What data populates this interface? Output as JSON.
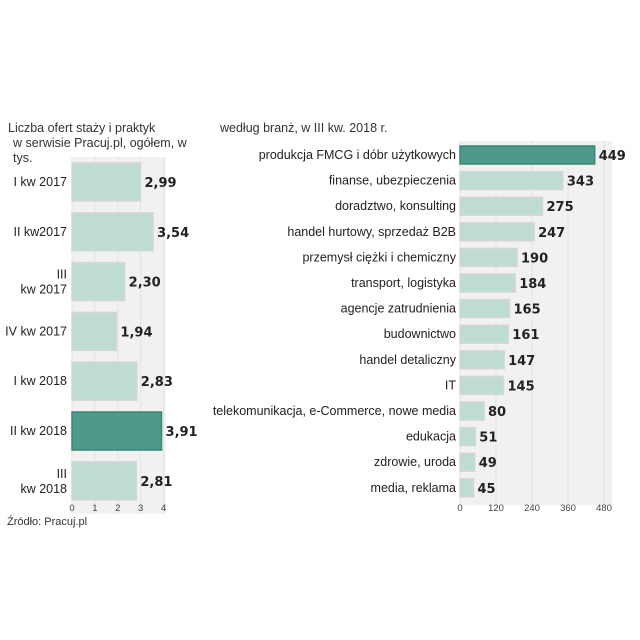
{
  "left_heading_line1": "Liczba ofert staży i praktyk",
  "left_heading_line2": "w serwisie Pracuj.pl, ogółem, w tys.",
  "right_heading": "według branż, w III kw. 2018 r.",
  "source": "Źródło: Pracuj.pl",
  "colors": {
    "bar": "#bfdcd3",
    "bar_stroke": "#d6d6d6",
    "highlight": "#4e9a8a",
    "panel": "#f1f1f1",
    "grid": "#e3e3e3"
  },
  "chart_data": [
    {
      "type": "bar",
      "orientation": "horizontal",
      "categories": [
        [
          "I kw 2017"
        ],
        [
          "II kw2017"
        ],
        [
          "III",
          "kw 2017"
        ],
        [
          "IV kw 2017"
        ],
        [
          "I kw 2018"
        ],
        [
          "II kw 2018"
        ],
        [
          "III",
          "kw  2018"
        ]
      ],
      "values": [
        2.99,
        3.54,
        2.3,
        1.94,
        2.83,
        3.91,
        2.81
      ],
      "value_labels": [
        "2,99",
        "3,54",
        "2,30",
        "1,94",
        "2,83",
        "3,91",
        "2,81"
      ],
      "highlight_index": 5,
      "xlim": [
        0,
        4
      ],
      "xticks": [
        0,
        1,
        2,
        3,
        4
      ],
      "grid": true
    },
    {
      "type": "bar",
      "orientation": "horizontal",
      "categories": [
        "produkcja FMCG i dóbr użytkowych",
        "finanse, ubezpieczenia",
        "doradztwo, konsulting",
        "handel hurtowy, sprzedaż B2B",
        "przemysł ciężki i chemiczny",
        "transport, logistyka",
        "agencje zatrudnienia",
        "budownictwo",
        "handel detaliczny",
        "IT",
        "telekomunikacja, e-Commerce, nowe media",
        "edukacja",
        "zdrowie, uroda",
        "media, reklama"
      ],
      "values": [
        449,
        343,
        275,
        247,
        190,
        184,
        165,
        161,
        147,
        145,
        80,
        51,
        49,
        45
      ],
      "highlight_index": 0,
      "xlim": [
        0,
        480
      ],
      "xticks": [
        0,
        120,
        240,
        360,
        480
      ],
      "grid": true
    }
  ]
}
